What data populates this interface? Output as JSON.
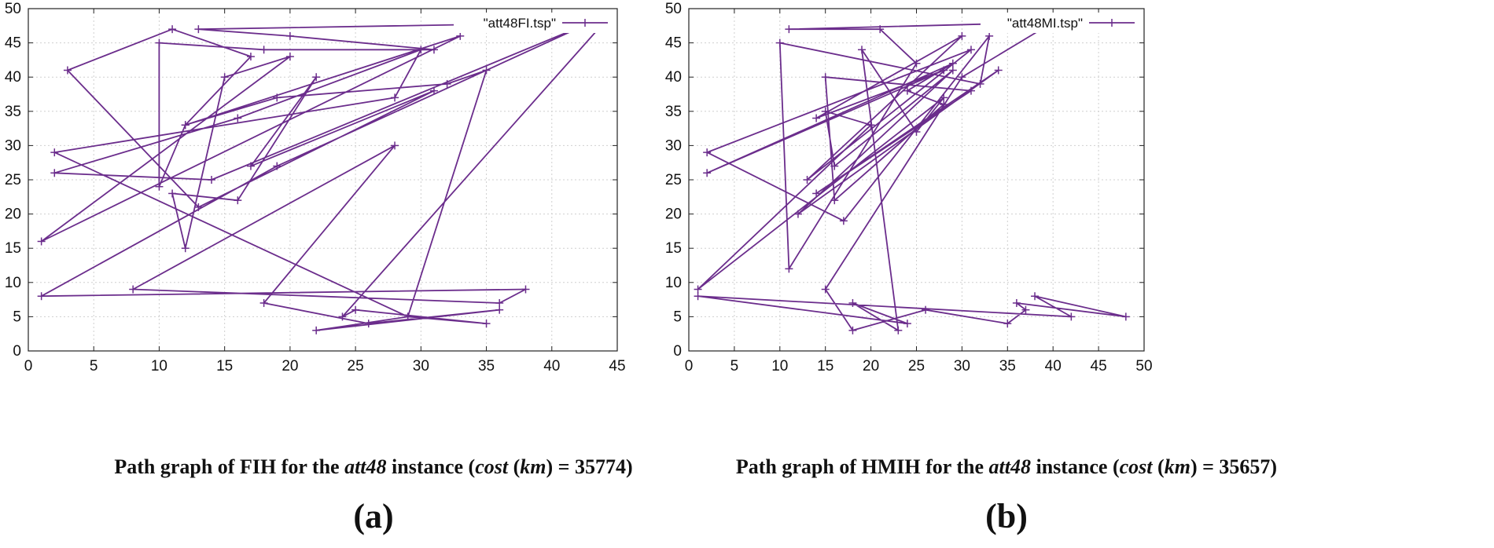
{
  "chart_data": [
    {
      "type": "line",
      "caption": {
        "prefix": "Path graph of FIH for the ",
        "instance": "att48",
        "mid": " instance (",
        "cost_label": "cost",
        "unit_open": " (",
        "unit": "km",
        "unit_close": ")",
        "value": " = 35774)"
      },
      "sublabel": "(a)",
      "xlim": [
        0,
        45
      ],
      "ylim": [
        0,
        50
      ],
      "xticks": [
        0,
        5,
        10,
        15,
        20,
        25,
        30,
        35,
        40,
        45
      ],
      "yticks": [
        0,
        5,
        10,
        15,
        20,
        25,
        30,
        35,
        40,
        45,
        50
      ],
      "grid": true,
      "legend_position": "top-right",
      "series": [
        {
          "name": "\"att48FI.tsp\"",
          "color": "#6b2d8c",
          "x": [
            44,
            13,
            20,
            31,
            18,
            10,
            10,
            12,
            17,
            11,
            3,
            13,
            31,
            17,
            22,
            16,
            11,
            12,
            15,
            20,
            1,
            33,
            12,
            19,
            32,
            35,
            29,
            2,
            28,
            30,
            16,
            2,
            14,
            43,
            19,
            1,
            38,
            36,
            8,
            28,
            18,
            26,
            36,
            22,
            29,
            35,
            25,
            24,
            44
          ],
          "y": [
            48,
            47,
            46,
            44,
            44,
            45,
            24,
            33,
            43,
            47,
            41,
            21,
            38,
            27,
            40,
            22,
            23,
            15,
            40,
            43,
            16,
            46,
            33,
            37,
            39,
            41,
            5,
            29,
            37,
            44,
            34,
            26,
            25,
            48,
            27,
            8,
            9,
            7,
            9,
            30,
            7,
            4,
            6,
            3,
            5,
            4,
            6,
            5,
            48
          ]
        }
      ]
    },
    {
      "type": "line",
      "caption": {
        "prefix": "Path graph of HMIH for the ",
        "instance": "att48",
        "mid": " instance (",
        "cost_label": "cost",
        "unit_open": " (",
        "unit": "km",
        "unit_close": ")",
        "value": " = 35657)"
      },
      "sublabel": "(b)",
      "xlim": [
        0,
        50
      ],
      "ylim": [
        0,
        50
      ],
      "xticks": [
        0,
        5,
        10,
        15,
        20,
        25,
        30,
        35,
        40,
        45,
        50
      ],
      "yticks": [
        0,
        5,
        10,
        15,
        20,
        25,
        30,
        35,
        40,
        45,
        50
      ],
      "grid": true,
      "legend_position": "top-right",
      "series": [
        {
          "name": "\"att48MI.tsp\"",
          "color": "#6b2d8c",
          "x": [
            40,
            11,
            21,
            25,
            11,
            10,
            32,
            33,
            17,
            2,
            31,
            13,
            30,
            14,
            28,
            2,
            29,
            24,
            28,
            16,
            15,
            31,
            14,
            34,
            12,
            29,
            16,
            15,
            20,
            1,
            28,
            25,
            19,
            23,
            18,
            24,
            1,
            42,
            38,
            48,
            36,
            37,
            35,
            26,
            18,
            15,
            30,
            40
          ],
          "y": [
            48,
            47,
            47,
            42,
            12,
            45,
            39,
            46,
            19,
            29,
            44,
            25,
            46,
            34,
            41,
            26,
            42,
            38,
            36,
            22,
            40,
            38,
            23,
            41,
            20,
            41,
            27,
            35,
            33,
            9,
            37,
            32,
            44,
            3,
            7,
            4,
            8,
            5,
            8,
            5,
            7,
            6,
            4,
            6,
            3,
            9,
            40,
            48
          ]
        }
      ]
    }
  ]
}
